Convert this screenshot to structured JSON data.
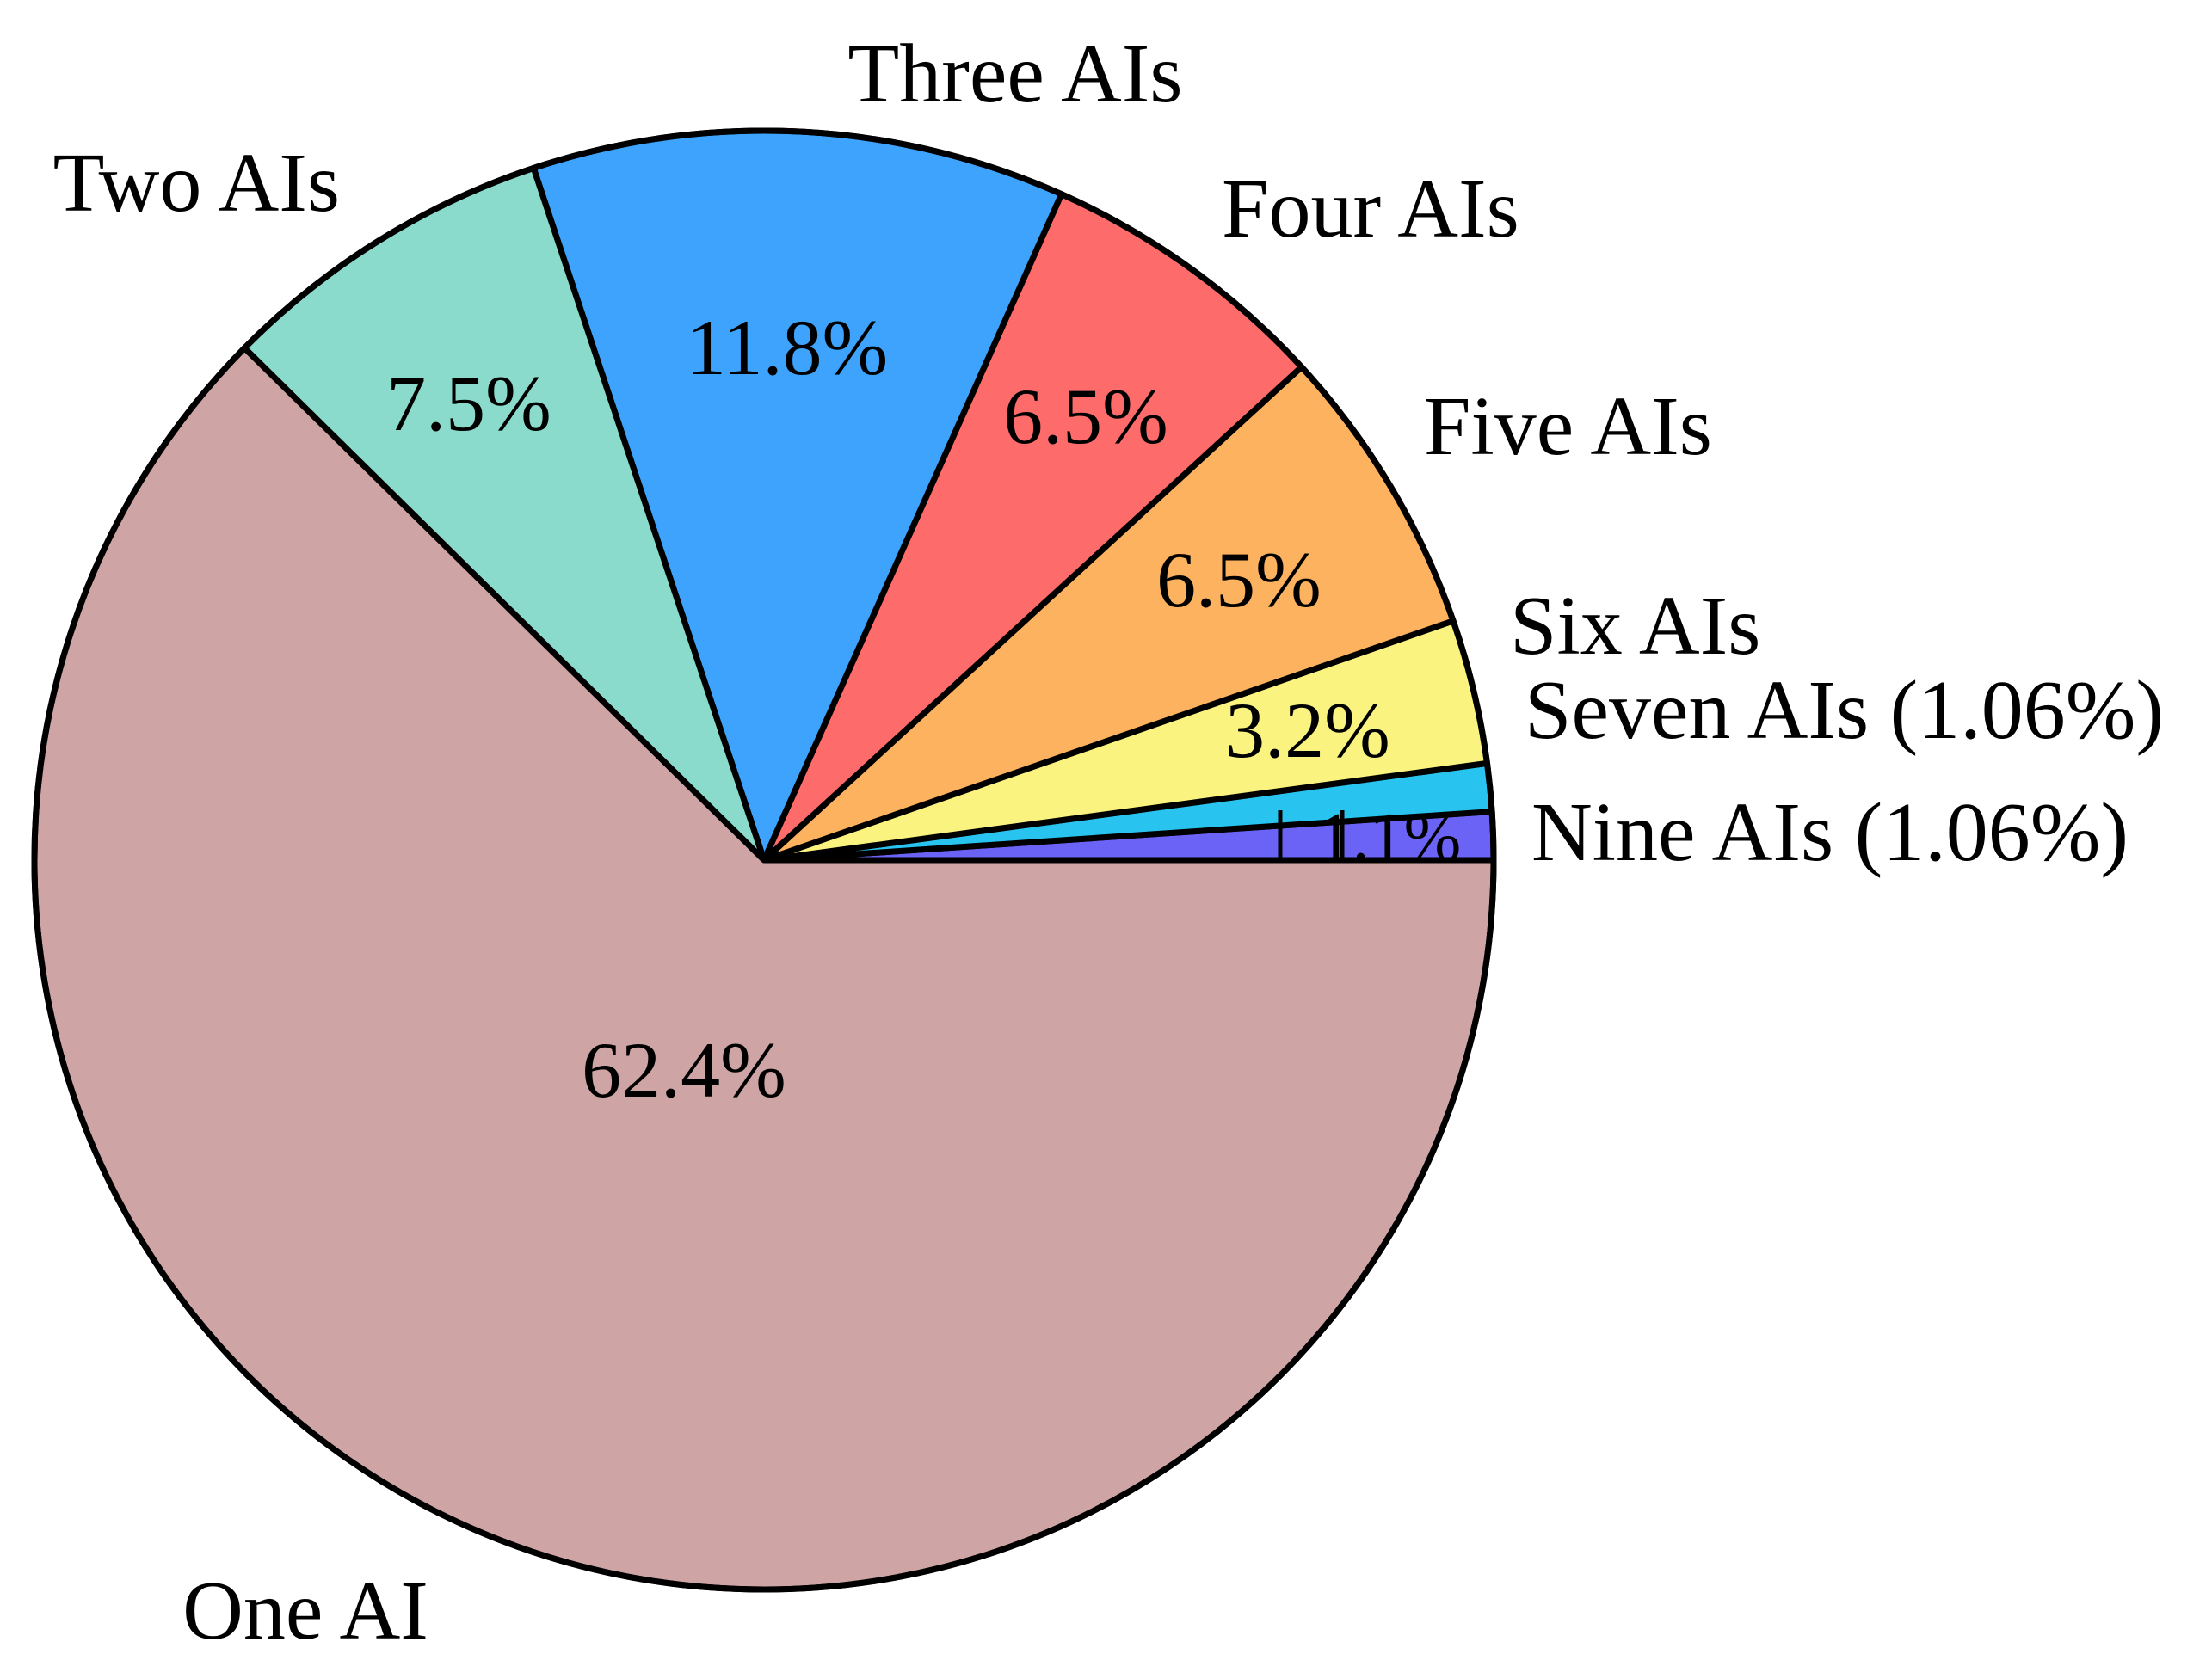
{
  "chart_data": {
    "type": "pie",
    "title": "",
    "start_angle_deg": 0,
    "direction": "counterclockwise",
    "stroke_color": "#000000",
    "slices": [
      {
        "name": "Nine AIs",
        "label": "Nine AIs (1.06%)",
        "value": 1.06,
        "pct_label": "",
        "color": "#6a63f5"
      },
      {
        "name": "Seven AIs",
        "label": "Seven AIs (1.06%)",
        "value": 1.06,
        "pct_label": "1.1%",
        "color": "#29c3ef"
      },
      {
        "name": "Six AIs",
        "label": "Six AIs",
        "value": 3.2,
        "pct_label": "3.2%",
        "color": "#fbf37f"
      },
      {
        "name": "Five AIs",
        "label": "Five AIs",
        "value": 6.5,
        "pct_label": "6.5%",
        "color": "#fcb25e"
      },
      {
        "name": "Four AIs",
        "label": "Four AIs",
        "value": 6.5,
        "pct_label": "6.5%",
        "color": "#fe6b6b"
      },
      {
        "name": "Three AIs",
        "label": "Three AIs",
        "value": 11.8,
        "pct_label": "11.8%",
        "color": "#3ea3fd"
      },
      {
        "name": "Two AIs",
        "label": "Two AIs",
        "value": 7.5,
        "pct_label": "7.5%",
        "color": "#8bdbcd"
      },
      {
        "name": "One AI",
        "label": "One AI",
        "value": 62.4,
        "pct_label": "62.4%",
        "color": "#cfa4a4"
      }
    ]
  }
}
